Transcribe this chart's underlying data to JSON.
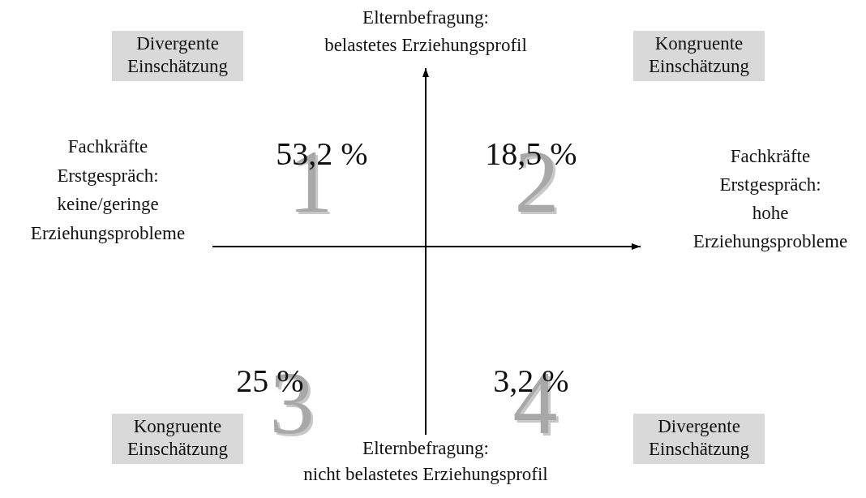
{
  "chart_data": {
    "type": "other",
    "categories": [
      "1",
      "2",
      "3",
      "4"
    ],
    "values": [
      53.2,
      18.5,
      25,
      3.2
    ],
    "value_labels": [
      "53,2 %",
      "18,5 %",
      "25 %",
      "3,2 %"
    ],
    "annotations": [
      "Elternbefragung:\nbelastetes Erziehungsprofil",
      "Fachkräfte\nErstgespräch:\nhohe\nErziehungsprobleme",
      "Elternbefragung:\nnicht belastetes Erziehungsprofil",
      "Fachkräfte\nErstgespräch:\nkeine/geringe\nErziehungsprobleme",
      "Divergente\nEinschätzung",
      "Kongruente\nEinschätzung",
      "Kongruente\nEinschätzung",
      "Divergente\nEinschätzung"
    ]
  }
}
